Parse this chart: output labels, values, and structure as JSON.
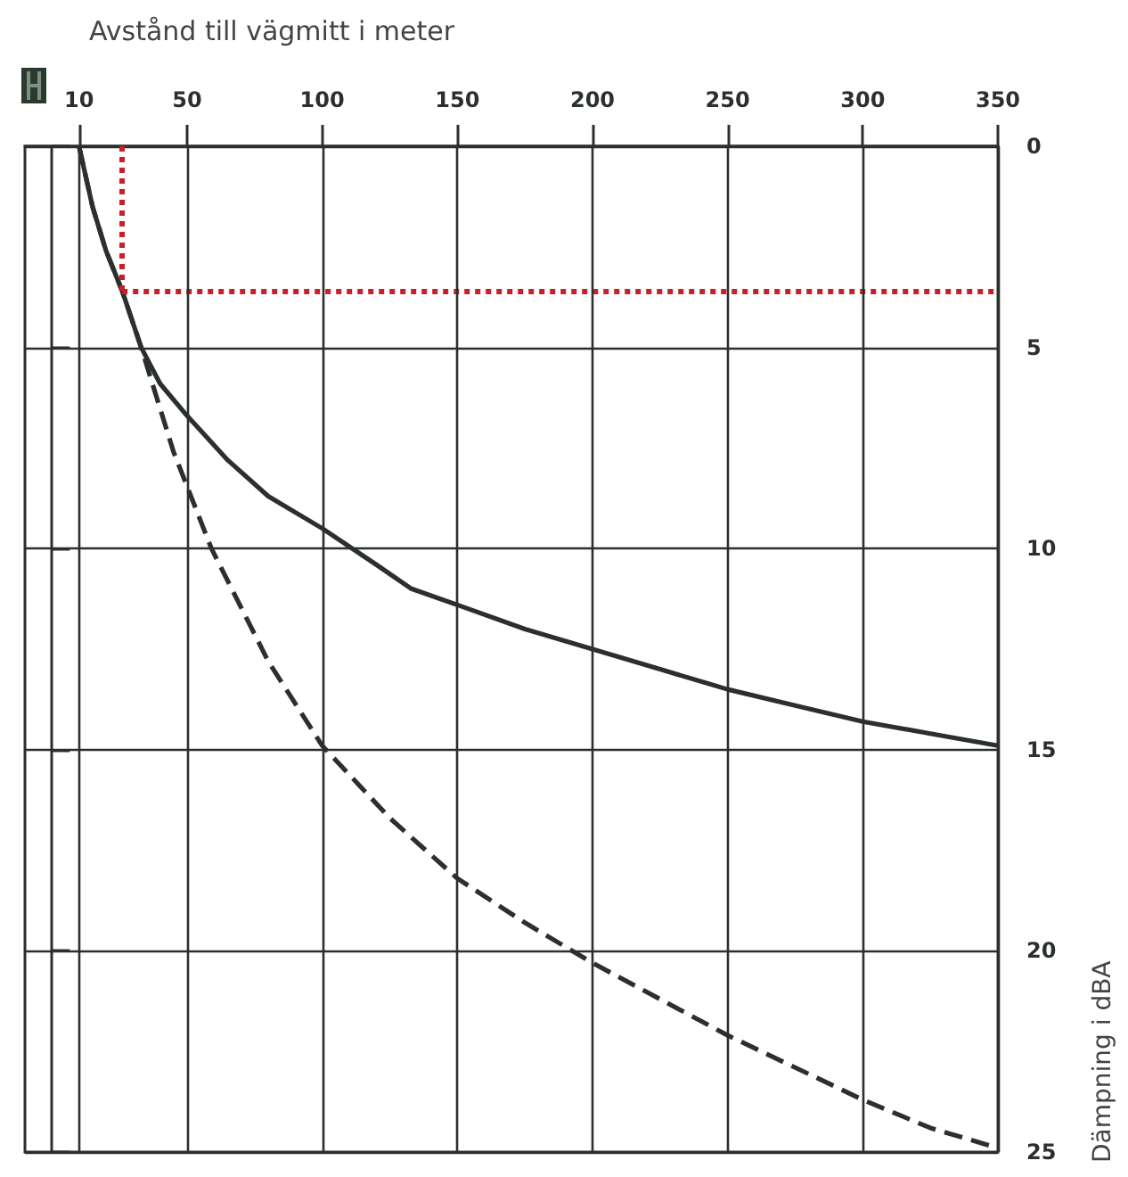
{
  "chart_data": {
    "type": "line",
    "xlabel": "Avstånd till vägmitt i meter",
    "ylabel": "Dämpning i dBA",
    "series": [
      {
        "color": "#2b302b",
        "line_style": "solid",
        "x": [
          10,
          15,
          20,
          26,
          33,
          40,
          50,
          65,
          80,
          100,
          120,
          133,
          150,
          175,
          200,
          225,
          250,
          275,
          300,
          325,
          350
        ],
        "values": [
          0,
          1.5,
          2.6,
          3.6,
          5,
          5.9,
          6.7,
          7.8,
          8.7,
          9.5,
          10.4,
          11,
          11.4,
          12,
          12.5,
          13,
          13.5,
          13.9,
          14.3,
          14.6,
          14.9
        ]
      },
      {
        "color": "#2b302b",
        "line_style": "dashed",
        "x": [
          10,
          15,
          20,
          26,
          33,
          45,
          59,
          80,
          100,
          125,
          150,
          175,
          200,
          225,
          250,
          275,
          300,
          325,
          350
        ],
        "values": [
          0,
          1.5,
          2.6,
          3.6,
          5,
          7.6,
          10,
          12.8,
          14.9,
          16.7,
          18.2,
          19.3,
          20.3,
          21.2,
          22.1,
          22.9,
          23.7,
          24.4,
          24.9
        ]
      }
    ],
    "xlim": [
      -10,
      350
    ],
    "xticks": [
      10,
      50,
      100,
      150,
      200,
      250,
      300,
      350
    ],
    "ylim": [
      25,
      0
    ],
    "yticks": [
      0,
      5,
      10,
      15,
      20,
      25
    ],
    "grid": true,
    "marker": "none",
    "ref_lines": [
      {
        "axis": "x",
        "value": 26,
        "color": "#c8202a",
        "line_style": "dotted"
      },
      {
        "axis": "y",
        "value": 3.6,
        "color": "#c8202a",
        "line_style": "dotted"
      }
    ]
  }
}
